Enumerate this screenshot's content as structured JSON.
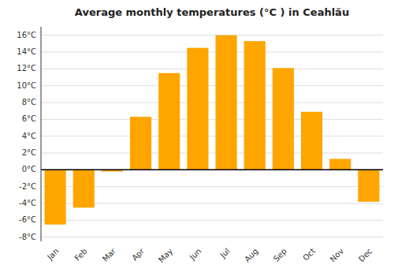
{
  "chart_data": {
    "type": "bar",
    "title": "Average monthly temperatures (°C ) in Ceahlău",
    "categories": [
      "Jan",
      "Feb",
      "Mar",
      "Apr",
      "May",
      "Jun",
      "Jul",
      "Aug",
      "Sep",
      "Oct",
      "Nov",
      "Dec"
    ],
    "values": [
      -6.5,
      -4.5,
      -0.2,
      6.3,
      11.5,
      14.5,
      16.0,
      15.3,
      12.1,
      6.9,
      1.3,
      -3.8
    ],
    "color": "#FFA500",
    "ylim": [
      -8.5,
      17
    ],
    "yticks": [
      {
        "value": -8,
        "label": "-8°C"
      },
      {
        "value": -6,
        "label": "-6°C"
      },
      {
        "value": -4,
        "label": "-4°C"
      },
      {
        "value": -2,
        "label": "-2°C"
      },
      {
        "value": 0,
        "label": "0°C"
      },
      {
        "value": 2,
        "label": "2°C"
      },
      {
        "value": 4,
        "label": "4°C"
      },
      {
        "value": 6,
        "label": "6°C"
      },
      {
        "value": 8,
        "label": "8°C"
      },
      {
        "value": 10,
        "label": "10°C"
      },
      {
        "value": 12,
        "label": "12°C"
      },
      {
        "value": 14,
        "label": "14°C"
      },
      {
        "value": 16,
        "label": "16°C"
      }
    ],
    "grid": true
  }
}
